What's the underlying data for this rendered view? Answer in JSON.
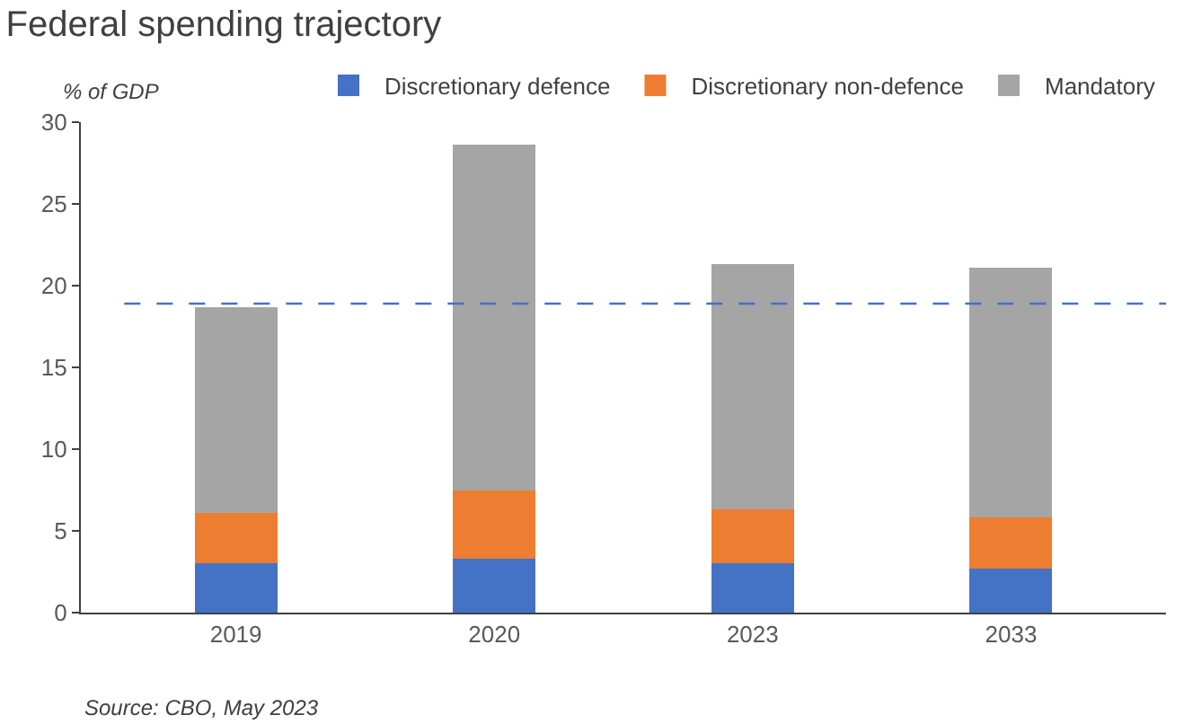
{
  "chart_data": {
    "type": "bar",
    "title": "Federal spending trajectory",
    "ylabel": "% of GDP",
    "categories": [
      "2019",
      "2020",
      "2023",
      "2033"
    ],
    "stacked": true,
    "series": [
      {
        "name": "Discretionary defence",
        "color": "#4472c4",
        "values": [
          3.0,
          3.3,
          3.0,
          2.7
        ]
      },
      {
        "name": "Discretionary non-defence",
        "color": "#ed7d31",
        "values": [
          3.1,
          4.2,
          3.3,
          3.1
        ]
      },
      {
        "name": "Mandatory",
        "color": "#a5a5a5",
        "values": [
          12.6,
          21.1,
          15.0,
          15.3
        ]
      }
    ],
    "ylim": [
      0,
      30
    ],
    "yticks": [
      0,
      5,
      10,
      15,
      20,
      25,
      30
    ],
    "grid": false,
    "legend": "top",
    "ref_lines": [
      {
        "axis": "y",
        "value": 18.9,
        "color": "#4472c4",
        "line_style": "dashed"
      }
    ],
    "annotations": [
      "Source: CBO, May 2023"
    ]
  }
}
